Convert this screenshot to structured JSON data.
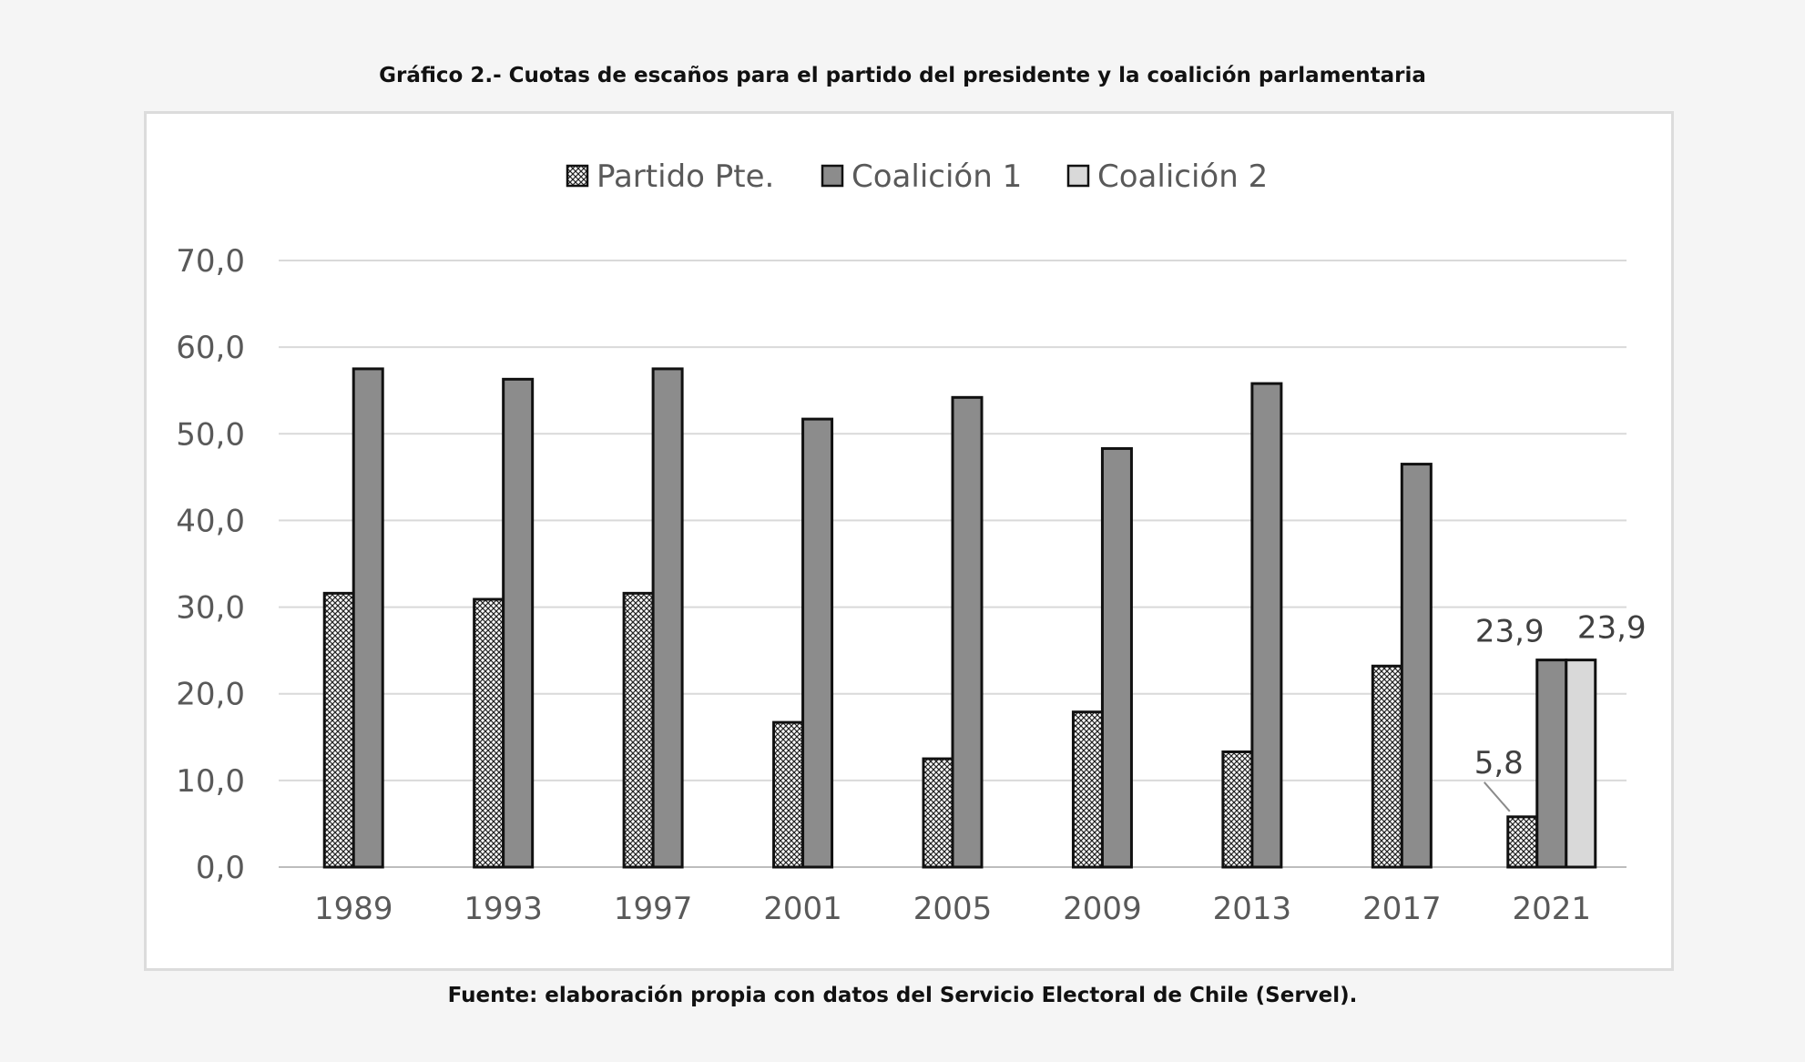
{
  "figure": {
    "title": "Gráfico 2.- Cuotas de escaños para el partido del presidente y la coalición parlamentaria",
    "source": "Fuente: elaboración propia con datos del Servicio Electoral de Chile (Servel)."
  },
  "chart_data": {
    "type": "bar",
    "categories": [
      "1989",
      "1993",
      "1997",
      "2001",
      "2005",
      "2009",
      "2013",
      "2017",
      "2021"
    ],
    "series": [
      {
        "name": "Partido Pte.",
        "pattern": "crosshatch",
        "color": "#ffffff",
        "values": [
          31.6,
          30.9,
          31.6,
          16.7,
          12.5,
          17.9,
          13.3,
          23.2,
          5.8
        ]
      },
      {
        "name": "Coalición 1",
        "pattern": "solid",
        "color": "#8c8c8c",
        "values": [
          57.5,
          56.3,
          57.5,
          51.7,
          54.2,
          48.3,
          55.8,
          46.5,
          23.9
        ]
      },
      {
        "name": "Coalición 2",
        "pattern": "solid",
        "color": "#d9d9d9",
        "values": [
          null,
          null,
          null,
          null,
          null,
          null,
          null,
          null,
          23.9
        ]
      }
    ],
    "y_ticks": [
      "0,0",
      "10,0",
      "20,0",
      "30,0",
      "40,0",
      "50,0",
      "60,0",
      "70,0"
    ],
    "ylim": [
      0,
      70
    ],
    "grid": true,
    "legend_position": "top",
    "data_labels": [
      {
        "category": "2021",
        "series": "Partido Pte.",
        "text": "5,8"
      },
      {
        "category": "2021",
        "series": "Coalición 1",
        "text": "23,9"
      },
      {
        "category": "2021",
        "series": "Coalición 2",
        "text": "23,9"
      }
    ]
  }
}
